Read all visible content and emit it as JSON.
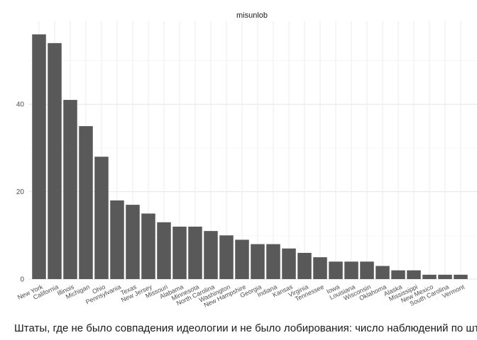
{
  "chart_data": {
    "type": "bar",
    "panel_title": "misunlob",
    "categories": [
      "New York",
      "California",
      "Illinois",
      "Michigan",
      "Ohio",
      "Pennsylvania",
      "Texas",
      "New Jersey",
      "Missouri",
      "Alabama",
      "Minnesota",
      "North Carolina",
      "Washington",
      "New Hampshire",
      "Georgia",
      "Indiana",
      "Kansas",
      "Virginia",
      "Tennessee",
      "Iowa",
      "Louisiana",
      "Wisconsin",
      "Oklahoma",
      "Alaska",
      "Mississippi",
      "New Mexico",
      "South Carolina",
      "Vermont"
    ],
    "values": [
      56,
      54,
      41,
      35,
      28,
      18,
      17,
      15,
      13,
      12,
      12,
      11,
      10,
      9,
      8,
      8,
      7,
      6,
      5,
      4,
      4,
      4,
      3,
      2,
      2,
      1,
      1,
      1
    ],
    "ylim": [
      0,
      59
    ],
    "y_ticks": [
      0,
      20,
      40
    ],
    "grid": true,
    "bar_color": "#595959",
    "caption": "Штаты, где не было совпадения идеологии и не было лобирования: число наблюдений по штата"
  }
}
